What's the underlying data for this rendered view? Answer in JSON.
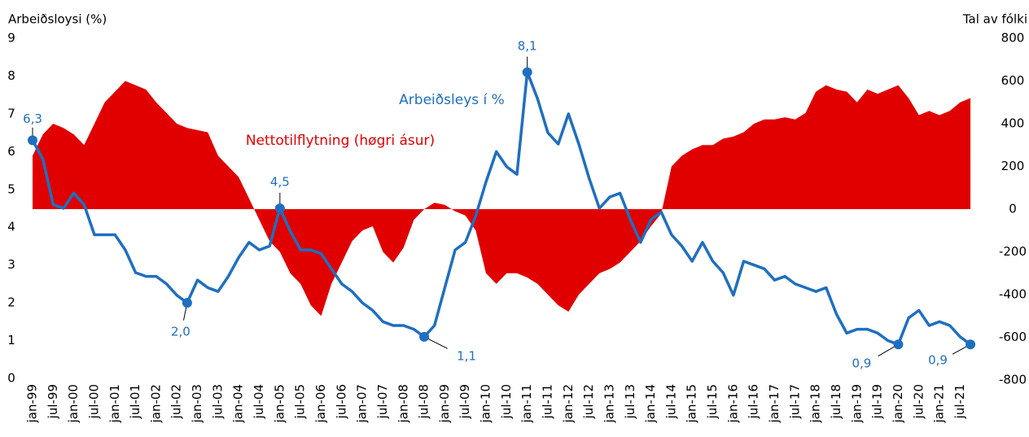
{
  "chart_data": {
    "type": "line-area",
    "y_label": "Arbeiðsloysi (%)",
    "y2_label": "Tal av fólki",
    "categories": [
      "jan-99",
      null,
      "jul-99",
      null,
      "jan-00",
      null,
      "jul-00",
      null,
      "jan-01",
      null,
      "jul-01",
      null,
      "jan-02",
      null,
      "jul-02",
      null,
      "jan-03",
      null,
      "jul-03",
      null,
      "jan-04",
      null,
      "jul-04",
      null,
      "jan-05",
      null,
      "jul-05",
      null,
      "jan-06",
      null,
      "jul-06",
      null,
      "jan-07",
      null,
      "jul-07",
      null,
      "jan-08",
      null,
      "jul-08",
      null,
      "jan-09",
      null,
      "jul-09",
      null,
      "jan-10",
      null,
      "jul-10",
      null,
      "jan-11",
      null,
      "jul-11",
      null,
      "jan-12",
      null,
      "jul-12",
      null,
      "jan-13",
      null,
      "jul-13",
      null,
      "jan-14",
      null,
      "jul-14",
      null,
      "jan-15",
      null,
      "jul-15",
      null,
      "jan-16",
      null,
      "jul-16",
      null,
      "jan-17",
      null,
      "jul-17",
      null,
      "jan-18",
      null,
      "jul-18",
      null,
      "jan-19",
      null,
      "jul-19",
      null,
      "jan-20",
      null,
      "jul-20",
      null,
      "jan-21",
      null,
      "jul-21",
      null
    ],
    "series": [
      {
        "name": "Nettotilflytning (høgri ásur)",
        "color": "#e00000",
        "kind": "area",
        "axis": "y2",
        "values": [
          250,
          350,
          400,
          380,
          350,
          300,
          400,
          500,
          550,
          600,
          580,
          560,
          500,
          450,
          400,
          380,
          370,
          360,
          250,
          200,
          150,
          50,
          -50,
          -150,
          -200,
          -300,
          -350,
          -450,
          -500,
          -350,
          -250,
          -150,
          -100,
          -80,
          -200,
          -250,
          -180,
          -50,
          0,
          30,
          20,
          -10,
          -30,
          -100,
          -300,
          -350,
          -300,
          -300,
          -320,
          -350,
          -400,
          -450,
          -480,
          -400,
          -350,
          -300,
          -280,
          -250,
          -200,
          -150,
          -80,
          -20,
          200,
          250,
          280,
          300,
          300,
          330,
          340,
          360,
          400,
          420,
          420,
          430,
          420,
          450,
          550,
          580,
          560,
          550,
          500,
          560,
          540,
          560,
          580,
          520,
          440,
          460,
          440,
          460,
          500,
          520
        ]
      },
      {
        "name": "Arbeiðsleys í %",
        "color": "#1f6fc0",
        "kind": "line",
        "values": [
          6.3,
          5.8,
          4.6,
          4.5,
          4.9,
          4.6,
          3.8,
          3.8,
          3.8,
          3.4,
          2.8,
          2.7,
          2.7,
          2.5,
          2.2,
          2.0,
          2.6,
          2.4,
          2.3,
          2.7,
          3.2,
          3.6,
          3.4,
          3.5,
          4.5,
          3.9,
          3.4,
          3.4,
          3.3,
          2.9,
          2.5,
          2.3,
          2.0,
          1.8,
          1.5,
          1.4,
          1.4,
          1.3,
          1.1,
          1.4,
          2.4,
          3.4,
          3.6,
          4.3,
          5.2,
          6.0,
          5.6,
          5.4,
          8.1,
          7.4,
          6.5,
          6.2,
          7.0,
          6.2,
          5.3,
          4.5,
          4.8,
          4.9,
          4.2,
          3.6,
          4.2,
          4.4,
          3.8,
          3.5,
          3.1,
          3.6,
          3.1,
          2.8,
          2.2,
          3.1,
          3.0,
          2.9,
          2.6,
          2.7,
          2.5,
          2.4,
          2.3,
          2.4,
          1.7,
          1.2,
          1.3,
          1.3,
          1.2,
          1.0,
          0.9,
          1.6,
          1.8,
          1.4,
          1.5,
          1.4,
          1.1,
          0.9
        ],
        "value_labels": [
          "6,3",
          null,
          null,
          null,
          null,
          null,
          null,
          null,
          null,
          null,
          null,
          null,
          null,
          null,
          null,
          "2,0",
          null,
          null,
          null,
          null,
          null,
          null,
          null,
          null,
          "4,5",
          null,
          null,
          null,
          null,
          null,
          null,
          null,
          null,
          null,
          null,
          null,
          null,
          null,
          "1,1",
          null,
          null,
          null,
          null,
          null,
          null,
          null,
          null,
          null,
          "8,1",
          null,
          null,
          null,
          null,
          null,
          null,
          null,
          null,
          null,
          null,
          null,
          null,
          null,
          null,
          null,
          null,
          null,
          null,
          null,
          null,
          null,
          null,
          null,
          null,
          null,
          null,
          null,
          null,
          null,
          null,
          null,
          null,
          null,
          null,
          null,
          "0,9",
          null,
          null,
          null,
          null,
          null,
          null,
          "0,9"
        ]
      }
    ],
    "ylim": [
      0,
      9
    ],
    "yticks": [
      0,
      1,
      2,
      3,
      4,
      5,
      6,
      7,
      8,
      9
    ],
    "y2lim": [
      -800,
      800
    ],
    "y2ticks": [
      -800,
      -600,
      -400,
      -200,
      0,
      200,
      400,
      600,
      800
    ]
  }
}
